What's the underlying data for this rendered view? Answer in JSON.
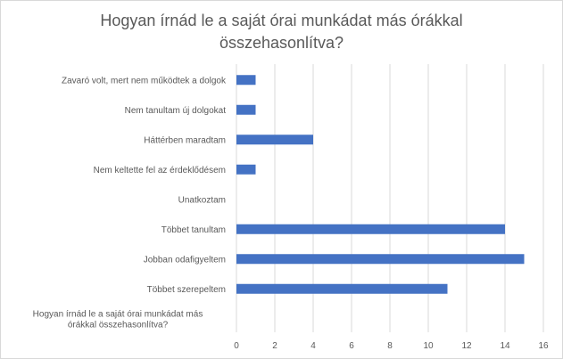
{
  "chart_data": {
    "type": "bar",
    "orientation": "horizontal",
    "title": "Hogyan írnád le a saját órai munkádat más órákkal összehasonlítva?",
    "categories": [
      "Zavaró volt, mert nem működtek a dolgok",
      "Nem tanultam új dolgokat",
      "Háttérben maradtam",
      "Nem keltette fel az érdeklődésem",
      "Unatkoztam",
      "Többet tanultam",
      "Jobban odafigyeltem",
      "Többet szerepeltem",
      "Hogyan írnád le a saját órai munkádat más órákkal összehasonlítva?"
    ],
    "values": [
      1,
      1,
      4,
      1,
      0,
      14,
      15,
      11,
      0
    ],
    "xlim": [
      0,
      16
    ],
    "xticks": [
      0,
      2,
      4,
      6,
      8,
      10,
      12,
      14,
      16
    ],
    "grid": "vertical",
    "legend": "none",
    "bar_color": "#4472c4"
  }
}
